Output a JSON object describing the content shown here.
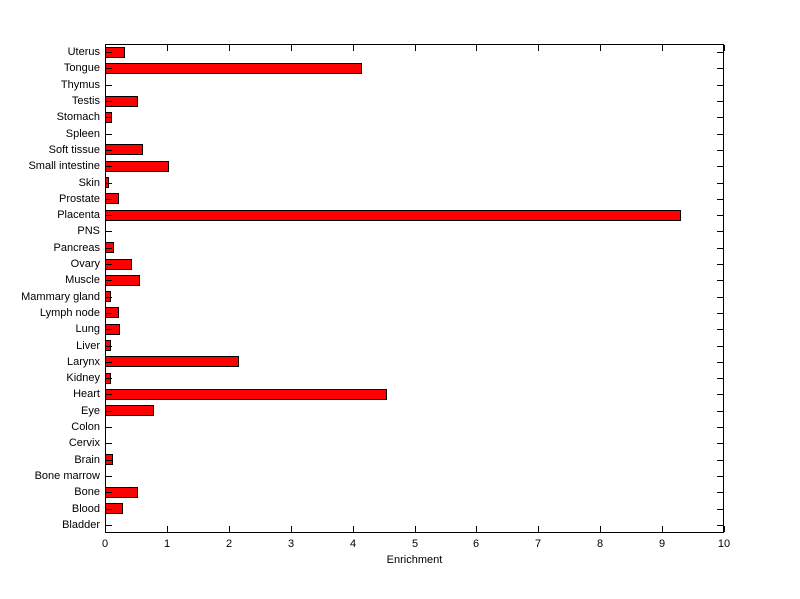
{
  "figure": {
    "background": "#FFFFFF",
    "axis_color": "#000000",
    "text_color": "#000000"
  },
  "chart_data": {
    "type": "bar",
    "orientation": "horizontal",
    "title": "",
    "xlabel": "Enrichment",
    "ylabel": "",
    "xlim": [
      0,
      10
    ],
    "x_ticks": [
      0,
      1,
      2,
      3,
      4,
      5,
      6,
      7,
      8,
      9,
      10
    ],
    "grid": false,
    "legend": false,
    "bar_color": "#FF0000",
    "bar_edge_color": "#000000",
    "categories": [
      "Uterus",
      "Tongue",
      "Thymus",
      "Testis",
      "Stomach",
      "Spleen",
      "Soft tissue",
      "Small intestine",
      "Skin",
      "Prostate",
      "Placenta",
      "PNS",
      "Pancreas",
      "Ovary",
      "Muscle",
      "Mammary gland",
      "Lymph node",
      "Lung",
      "Liver",
      "Larynx",
      "Kidney",
      "Heart",
      "Eye",
      "Colon",
      "Cervix",
      "Brain",
      "Bone marrow",
      "Bone",
      "Blood",
      "Bladder"
    ],
    "values": [
      0.32,
      4.15,
      0,
      0.53,
      0.12,
      0,
      0.61,
      1.04,
      0.06,
      0.22,
      9.3,
      0,
      0.14,
      0.44,
      0.57,
      0.1,
      0.22,
      0.24,
      0.1,
      2.17,
      0.1,
      4.55,
      0.79,
      0,
      0,
      0.13,
      0,
      0.53,
      0.29,
      0
    ]
  }
}
